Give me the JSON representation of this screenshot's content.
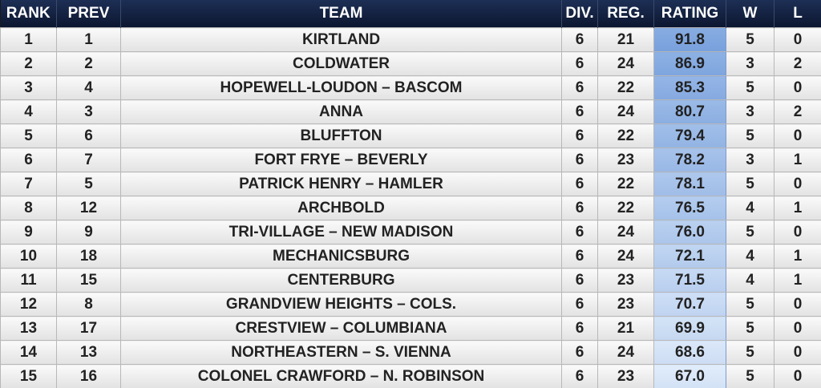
{
  "table": {
    "header": [
      "RANK",
      "PREV",
      "TEAM",
      "DIV.",
      "REG.",
      "RATING",
      "W",
      "L"
    ],
    "rows": [
      [
        "1",
        "1",
        "KIRTLAND",
        "6",
        "21",
        "91.8",
        "5",
        "0"
      ],
      [
        "2",
        "2",
        "COLDWATER",
        "6",
        "24",
        "86.9",
        "3",
        "2"
      ],
      [
        "3",
        "4",
        "HOPEWELL-LOUDON – BASCOM",
        "6",
        "22",
        "85.3",
        "5",
        "0"
      ],
      [
        "4",
        "3",
        "ANNA",
        "6",
        "24",
        "80.7",
        "3",
        "2"
      ],
      [
        "5",
        "6",
        "BLUFFTON",
        "6",
        "22",
        "79.4",
        "5",
        "0"
      ],
      [
        "6",
        "7",
        "FORT FRYE – BEVERLY",
        "6",
        "23",
        "78.2",
        "3",
        "1"
      ],
      [
        "7",
        "5",
        "PATRICK HENRY – HAMLER",
        "6",
        "22",
        "78.1",
        "5",
        "0"
      ],
      [
        "8",
        "12",
        "ARCHBOLD",
        "6",
        "22",
        "76.5",
        "4",
        "1"
      ],
      [
        "9",
        "9",
        "TRI-VILLAGE – NEW MADISON",
        "6",
        "24",
        "76.0",
        "5",
        "0"
      ],
      [
        "10",
        "18",
        "MECHANICSBURG",
        "6",
        "24",
        "72.1",
        "4",
        "1"
      ],
      [
        "11",
        "15",
        "CENTERBURG",
        "6",
        "23",
        "71.5",
        "4",
        "1"
      ],
      [
        "12",
        "8",
        "GRANDVIEW HEIGHTS – COLS.",
        "6",
        "23",
        "70.7",
        "5",
        "0"
      ],
      [
        "13",
        "17",
        "CRESTVIEW – COLUMBIANA",
        "6",
        "21",
        "69.9",
        "5",
        "0"
      ],
      [
        "14",
        "13",
        "NORTHEASTERN – S. VIENNA",
        "6",
        "24",
        "68.6",
        "5",
        "0"
      ],
      [
        "15",
        "16",
        "COLONEL CRAWFORD – N. ROBINSON",
        "6",
        "23",
        "67.0",
        "5",
        "0"
      ]
    ]
  }
}
